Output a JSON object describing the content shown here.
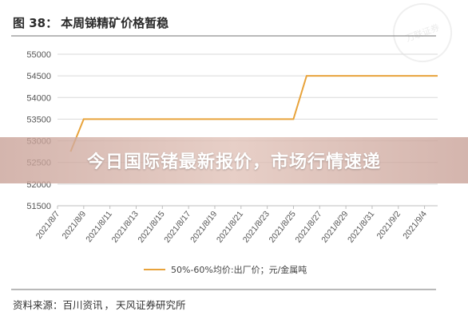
{
  "figure": {
    "number": "图 38：",
    "title": "本周锑精矿价格暂稳"
  },
  "banner": {
    "text": "今日国际锗最新报价，市场行情速递"
  },
  "source": {
    "label": "资料来源：",
    "items": [
      "百川资讯",
      "天风证券研究所"
    ]
  },
  "watermark": {
    "text": "万联证券"
  },
  "chart_data": {
    "type": "line",
    "title": "本周锑精矿价格暂稳",
    "xlabel": "",
    "ylabel": "",
    "ylim": [
      51500,
      55000
    ],
    "yticks": [
      51500,
      52000,
      52500,
      53000,
      53500,
      54000,
      54500,
      55000
    ],
    "xlim": [
      "2021/8/7",
      "2021/9/5"
    ],
    "xticks": [
      "2021/8/7",
      "2021/8/9",
      "2021/8/11",
      "2021/8/13",
      "2021/8/15",
      "2021/8/17",
      "2021/8/19",
      "2021/8/21",
      "2021/8/23",
      "2021/8/25",
      "2021/8/27",
      "2021/8/29",
      "2021/8/31",
      "2021/9/2",
      "2021/9/4"
    ],
    "grid": "horizontal",
    "legend": "bottom",
    "series": [
      {
        "name": "50%-60%均价:出厂价；元/金属吨",
        "color": "#E8A33B",
        "points": [
          [
            "2021/8/8",
            52750
          ],
          [
            "2021/8/9",
            53500
          ],
          [
            "2021/8/25",
            53500
          ],
          [
            "2021/8/26",
            54500
          ],
          [
            "2021/9/5",
            54500
          ]
        ]
      }
    ]
  }
}
